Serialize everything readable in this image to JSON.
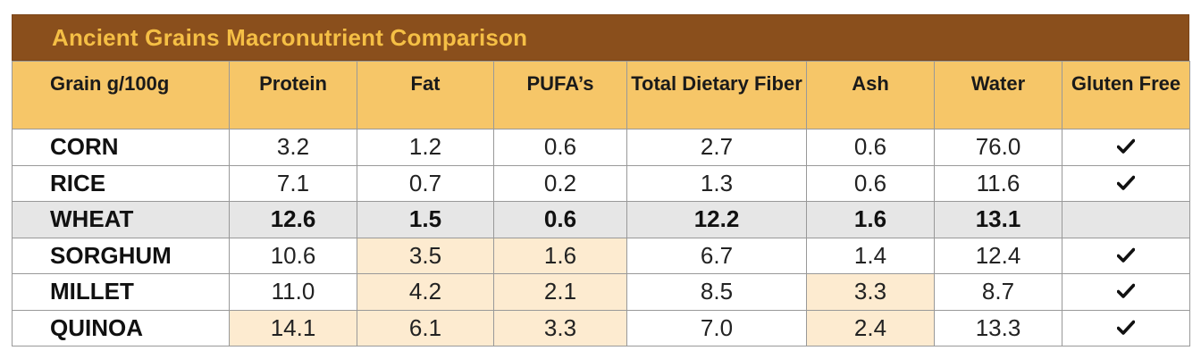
{
  "title": "Ancient Grains Macronutrient Comparison",
  "colors": {
    "title_bar": "#8a4f1c",
    "title_text": "#f5bf45",
    "header_bg": "#f6c668",
    "highlight_bg": "#fdebd0",
    "wheat_row_bg": "#e6e6e6"
  },
  "columns": [
    "Grain g/100g",
    "Protein",
    "Fat",
    "PUFA’s",
    "Total Dietary Fiber",
    "Ash",
    "Water",
    "Gluten Free"
  ],
  "rows": [
    {
      "grain": "CORN",
      "protein": "3.2",
      "fat": "1.2",
      "pufa": "0.6",
      "fiber": "2.7",
      "ash": "0.6",
      "water": "76.0",
      "gluten_free": true,
      "highlighted": []
    },
    {
      "grain": "RICE",
      "protein": "7.1",
      "fat": "0.7",
      "pufa": "0.2",
      "fiber": "1.3",
      "ash": "0.6",
      "water": "11.6",
      "gluten_free": true,
      "highlighted": []
    },
    {
      "grain": "WHEAT",
      "protein": "12.6",
      "fat": "1.5",
      "pufa": "0.6",
      "fiber": "12.2",
      "ash": "1.6",
      "water": "13.1",
      "gluten_free": false,
      "highlighted": []
    },
    {
      "grain": "SORGHUM",
      "protein": "10.6",
      "fat": "3.5",
      "pufa": "1.6",
      "fiber": "6.7",
      "ash": "1.4",
      "water": "12.4",
      "gluten_free": true,
      "highlighted": [
        "fat",
        "pufa"
      ]
    },
    {
      "grain": "MILLET",
      "protein": "11.0",
      "fat": "4.2",
      "pufa": "2.1",
      "fiber": "8.5",
      "ash": "3.3",
      "water": "8.7",
      "gluten_free": true,
      "highlighted": [
        "fat",
        "pufa",
        "ash"
      ]
    },
    {
      "grain": "QUINOA",
      "protein": "14.1",
      "fat": "6.1",
      "pufa": "3.3",
      "fiber": "7.0",
      "ash": "2.4",
      "water": "13.3",
      "gluten_free": true,
      "highlighted": [
        "protein",
        "fat",
        "pufa",
        "ash"
      ]
    }
  ],
  "chart_data": {
    "type": "table",
    "title": "Ancient Grains Macronutrient Comparison",
    "columns": [
      "Grain g/100g",
      "Protein",
      "Fat",
      "PUFA’s",
      "Total Dietary Fiber",
      "Ash",
      "Water",
      "Gluten Free"
    ],
    "rows": [
      [
        "CORN",
        3.2,
        1.2,
        0.6,
        2.7,
        0.6,
        76.0,
        true
      ],
      [
        "RICE",
        7.1,
        0.7,
        0.2,
        1.3,
        0.6,
        11.6,
        true
      ],
      [
        "WHEAT",
        12.6,
        1.5,
        0.6,
        12.2,
        1.6,
        13.1,
        false
      ],
      [
        "SORGHUM",
        10.6,
        3.5,
        1.6,
        6.7,
        1.4,
        12.4,
        true
      ],
      [
        "MILLET",
        11.0,
        4.2,
        2.1,
        8.5,
        3.3,
        8.7,
        true
      ],
      [
        "QUINOA",
        14.1,
        6.1,
        3.3,
        7.0,
        2.4,
        13.3,
        true
      ]
    ]
  }
}
